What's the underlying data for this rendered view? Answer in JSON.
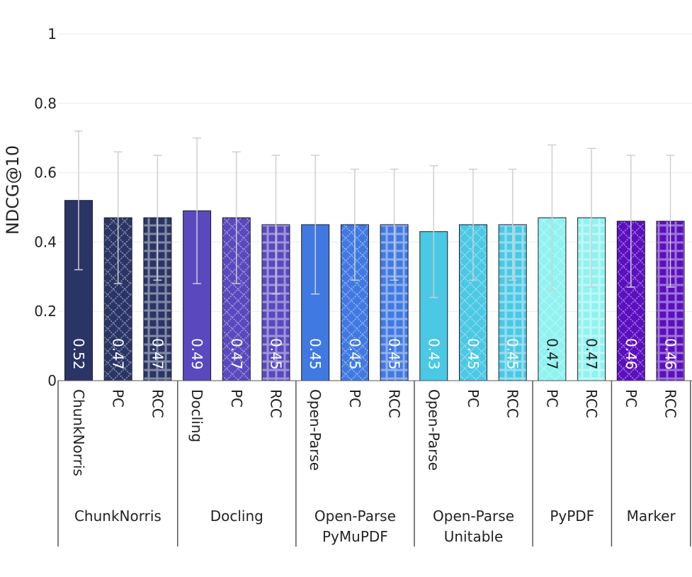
{
  "chart_data": {
    "type": "bar",
    "ylabel": "NDCG@10",
    "ylim": [
      0,
      1
    ],
    "yticks": [
      {
        "value": 0,
        "label": "0"
      },
      {
        "value": 0.2,
        "label": "0.2"
      },
      {
        "value": 0.4,
        "label": "0.4"
      },
      {
        "value": 0.6,
        "label": "0.6"
      },
      {
        "value": 0.8,
        "label": "0.8"
      },
      {
        "value": 1,
        "label": "1"
      }
    ],
    "groups": [
      {
        "name": "ChunkNorris",
        "name_lines": [
          "ChunkNorris"
        ],
        "color": "#2a3566",
        "bars": [
          {
            "label": "ChunkNorris",
            "value": 0.52,
            "value_label": "0.52",
            "err_low": 0.32,
            "err_high": 0.72,
            "pattern": "solid"
          },
          {
            "label": "PC",
            "value": 0.47,
            "value_label": "0.47",
            "err_low": 0.28,
            "err_high": 0.66,
            "pattern": "diamond"
          },
          {
            "label": "RCC",
            "value": 0.47,
            "value_label": "0.47",
            "err_low": 0.29,
            "err_high": 0.65,
            "pattern": "grid"
          }
        ]
      },
      {
        "name": "Docling",
        "name_lines": [
          "Docling"
        ],
        "color": "#5948be",
        "bars": [
          {
            "label": "Docling",
            "value": 0.49,
            "value_label": "0.49",
            "err_low": 0.28,
            "err_high": 0.7,
            "pattern": "solid"
          },
          {
            "label": "PC",
            "value": 0.47,
            "value_label": "0.47",
            "err_low": 0.28,
            "err_high": 0.66,
            "pattern": "diamond"
          },
          {
            "label": "RCC",
            "value": 0.45,
            "value_label": "0.45",
            "err_low": 0.25,
            "err_high": 0.65,
            "pattern": "grid"
          }
        ]
      },
      {
        "name": "Open-Parse PyMuPDF",
        "name_lines": [
          "Open-Parse",
          "PyMuPDF"
        ],
        "color": "#4079e2",
        "bars": [
          {
            "label": "Open-Parse",
            "value": 0.45,
            "value_label": "0.45",
            "err_low": 0.25,
            "err_high": 0.65,
            "pattern": "solid"
          },
          {
            "label": "PC",
            "value": 0.45,
            "value_label": "0.45",
            "err_low": 0.29,
            "err_high": 0.61,
            "pattern": "diamond"
          },
          {
            "label": "RCC",
            "value": 0.45,
            "value_label": "0.45",
            "err_low": 0.29,
            "err_high": 0.61,
            "pattern": "grid"
          }
        ]
      },
      {
        "name": "Open-Parse Unitable",
        "name_lines": [
          "Open-Parse",
          "Unitable"
        ],
        "color": "#4ac8e4",
        "bars": [
          {
            "label": "Open-Parse",
            "value": 0.43,
            "value_label": "0.43",
            "err_low": 0.24,
            "err_high": 0.62,
            "pattern": "solid"
          },
          {
            "label": "PC",
            "value": 0.45,
            "value_label": "0.45",
            "err_low": 0.29,
            "err_high": 0.61,
            "pattern": "diamond"
          },
          {
            "label": "RCC",
            "value": 0.45,
            "value_label": "0.45",
            "err_low": 0.29,
            "err_high": 0.61,
            "pattern": "grid"
          }
        ]
      },
      {
        "name": "PyPDF",
        "name_lines": [
          "PyPDF"
        ],
        "color": "#8ff3f0",
        "bars": [
          {
            "label": "PC",
            "value": 0.47,
            "value_label": "0.47",
            "err_low": 0.26,
            "err_high": 0.68,
            "pattern": "diamond"
          },
          {
            "label": "RCC",
            "value": 0.47,
            "value_label": "0.47",
            "err_low": 0.27,
            "err_high": 0.67,
            "pattern": "grid"
          }
        ]
      },
      {
        "name": "Marker",
        "name_lines": [
          "Marker"
        ],
        "color": "#5b0fbf",
        "bars": [
          {
            "label": "PC",
            "value": 0.46,
            "value_label": "0.46",
            "err_low": 0.27,
            "err_high": 0.65,
            "pattern": "diamond"
          },
          {
            "label": "RCC",
            "value": 0.46,
            "value_label": "0.46",
            "err_low": 0.27,
            "err_high": 0.65,
            "pattern": "grid"
          }
        ]
      }
    ]
  }
}
